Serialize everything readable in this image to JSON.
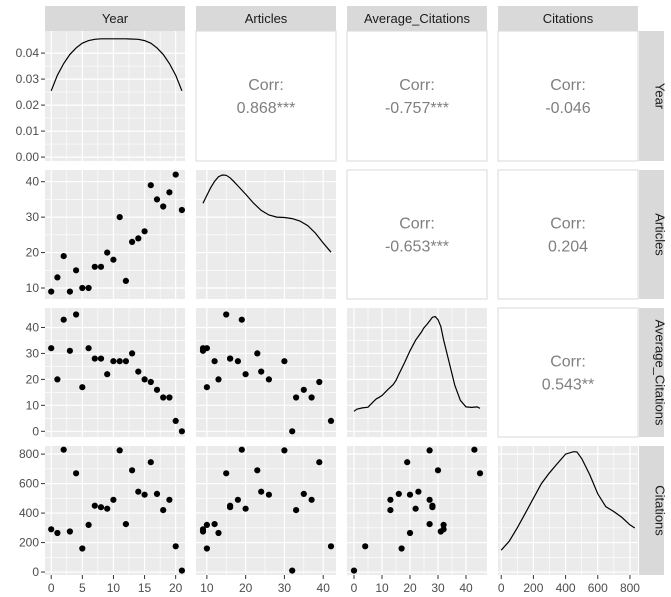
{
  "chart_data": {
    "type": "scatter",
    "variables": [
      "Year",
      "Articles",
      "Average_Citations",
      "Citations"
    ],
    "colors": {
      "panel": "#ebebeb",
      "strip": "#d9d9d9",
      "grid": "#ffffff",
      "point": "#000000",
      "corr": "#7f7f7f"
    },
    "axes": {
      "x": [
        {
          "var": "Year",
          "ticks": [
            0,
            5,
            10,
            15,
            20
          ],
          "tick_labels": [
            "0",
            "5",
            "10",
            "15",
            "20"
          ],
          "range": [
            -1,
            21.5
          ]
        },
        {
          "var": "Articles",
          "ticks": [
            10,
            20,
            30,
            40
          ],
          "tick_labels": [
            "10",
            "20",
            "30",
            "40"
          ],
          "range": [
            7.2,
            43.3
          ]
        },
        {
          "var": "Average_Citations",
          "ticks": [
            0,
            10,
            20,
            30,
            40
          ],
          "tick_labels": [
            "0",
            "10",
            "20",
            "30",
            "40"
          ],
          "range": [
            -2.5,
            47.5
          ]
        },
        {
          "var": "Citations",
          "ticks": [
            0,
            200,
            400,
            600,
            800
          ],
          "tick_labels": [
            "0",
            "200",
            "400",
            "600",
            "800"
          ],
          "range": [
            -20,
            850
          ]
        }
      ],
      "y": [
        {
          "var": "Year",
          "ticks": [
            0,
            0.01,
            0.02,
            0.03,
            0.04
          ],
          "tick_labels": [
            "0.00",
            "0.01",
            "0.02",
            "0.03",
            "0.04"
          ],
          "range": [
            -0.0015,
            0.0485
          ]
        },
        {
          "var": "Articles",
          "ticks": [
            10,
            20,
            30,
            40
          ],
          "tick_labels": [
            "10",
            "20",
            "30",
            "40"
          ],
          "range": [
            6.9,
            43.3
          ]
        },
        {
          "var": "Average_Citations",
          "ticks": [
            0,
            10,
            20,
            30,
            40
          ],
          "tick_labels": [
            "0",
            "10",
            "20",
            "30",
            "40"
          ],
          "range": [
            -2.2,
            47.5
          ]
        },
        {
          "var": "Citations",
          "ticks": [
            0,
            200,
            400,
            600,
            800
          ],
          "tick_labels": [
            "0",
            "200",
            "400",
            "600",
            "800"
          ],
          "range": [
            -20,
            855
          ]
        }
      ]
    },
    "correlations": [
      {
        "row": 0,
        "col": 1,
        "label": "Corr:",
        "value": "0.868***"
      },
      {
        "row": 0,
        "col": 2,
        "label": "Corr:",
        "value": "-0.757***"
      },
      {
        "row": 0,
        "col": 3,
        "label": "Corr:",
        "value": "-0.046"
      },
      {
        "row": 1,
        "col": 2,
        "label": "Corr:",
        "value": "-0.653***"
      },
      {
        "row": 1,
        "col": 3,
        "label": "Corr:",
        "value": "0.204"
      },
      {
        "row": 2,
        "col": 3,
        "label": "Corr:",
        "value": "0.543**"
      }
    ],
    "densities": [
      {
        "var": "Year",
        "x": [
          0,
          1,
          2,
          3,
          4,
          5,
          6,
          7,
          8,
          10,
          12,
          14,
          15,
          16,
          17,
          18,
          19,
          20,
          21
        ],
        "y": [
          0.0255,
          0.0315,
          0.036,
          0.0395,
          0.042,
          0.0438,
          0.0448,
          0.0453,
          0.0455,
          0.0455,
          0.0455,
          0.0453,
          0.0448,
          0.0438,
          0.042,
          0.0395,
          0.036,
          0.0315,
          0.0255
        ]
      },
      {
        "var": "Articles",
        "x": [
          9,
          10,
          11,
          12,
          13,
          14,
          15,
          16,
          17,
          18,
          20,
          22,
          24,
          26,
          28,
          30,
          32,
          34,
          36,
          38,
          40,
          42
        ],
        "y": [
          33.9,
          36.2,
          38.3,
          40.1,
          41.4,
          41.9,
          41.8,
          41.1,
          40.0,
          38.8,
          36.5,
          34.0,
          31.9,
          30.6,
          30.0,
          29.9,
          29.6,
          28.9,
          27.6,
          25.5,
          22.7,
          20.1
        ]
      },
      {
        "var": "Average_Citations",
        "x": [
          0,
          1,
          3,
          5,
          7,
          8,
          9,
          10,
          12,
          14,
          15,
          16,
          18,
          20,
          22,
          24,
          25,
          26,
          27,
          28,
          29,
          30,
          31,
          32,
          34,
          36,
          38,
          40,
          42,
          44,
          45
        ],
        "y": [
          7.7,
          8.5,
          9.0,
          9.3,
          11.5,
          12.5,
          13.1,
          13.8,
          16.0,
          18.0,
          19.6,
          21.9,
          26.3,
          31.0,
          35.1,
          38.1,
          39.9,
          41.1,
          42.5,
          43.9,
          44.2,
          43.0,
          40.4,
          35.2,
          26.5,
          17.7,
          11.9,
          9.4,
          9.2,
          9.4,
          8.8
        ]
      },
      {
        "var": "Citations",
        "x": [
          0,
          50,
          100,
          150,
          200,
          250,
          300,
          350,
          400,
          450,
          470,
          500,
          550,
          600,
          650,
          700,
          750,
          800,
          830
        ],
        "y": [
          148,
          210,
          300,
          400,
          500,
          600,
          673,
          737,
          800,
          816,
          815,
          770,
          661,
          530,
          443,
          410,
          371,
          320,
          299
        ]
      }
    ],
    "points": {
      "Year": [
        0,
        1,
        2,
        3,
        4,
        5,
        6,
        7,
        8,
        9,
        10,
        11,
        12,
        13,
        14,
        15,
        16,
        17,
        18,
        19,
        20,
        21
      ],
      "Articles": [
        9,
        13,
        19,
        9,
        15,
        10,
        10,
        16,
        16,
        20,
        18,
        30,
        12,
        23,
        24,
        26,
        39,
        35,
        33,
        37,
        42,
        32
      ],
      "Average_Citations": [
        32,
        20,
        43,
        31,
        45,
        17,
        32,
        28,
        28,
        22,
        27,
        27,
        27,
        30,
        23,
        20,
        19,
        16,
        13,
        13,
        4,
        0
      ],
      "Citations": [
        290,
        265,
        830,
        275,
        670,
        160,
        320,
        450,
        440,
        430,
        490,
        825,
        325,
        690,
        545,
        525,
        745,
        530,
        420,
        490,
        175,
        10
      ]
    }
  }
}
